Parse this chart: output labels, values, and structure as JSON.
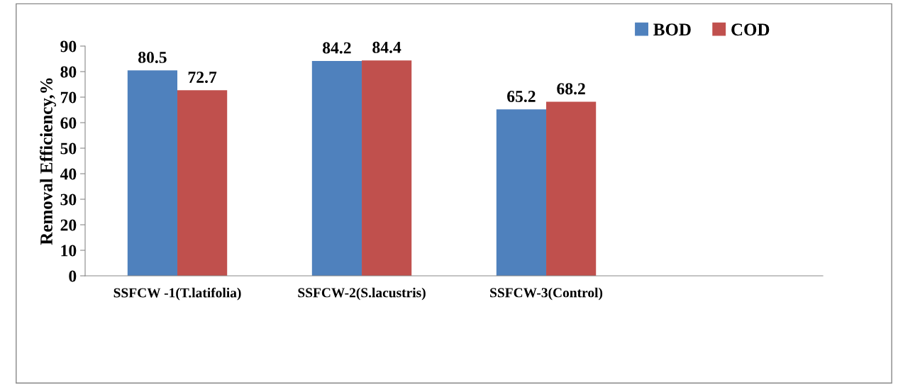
{
  "chart_data": {
    "type": "bar",
    "ylabel": "Removal Efficiency,%",
    "categories": [
      "SSFCW -1(T.latifolia)",
      "SSFCW-2(S.lacustris)",
      "SSFCW-3(Control)",
      null
    ],
    "series": [
      {
        "name": "BOD",
        "color": "#4f81bd",
        "values": [
          80.5,
          84.2,
          65.2,
          null
        ]
      },
      {
        "name": "COD",
        "color": "#c0504d",
        "values": [
          72.7,
          84.4,
          68.2,
          null
        ]
      }
    ],
    "ylim": [
      0,
      90
    ],
    "yticks": [
      0,
      10,
      20,
      30,
      40,
      50,
      60,
      70,
      80,
      90
    ],
    "data_labels": true,
    "legend": "top right",
    "grid": false
  }
}
